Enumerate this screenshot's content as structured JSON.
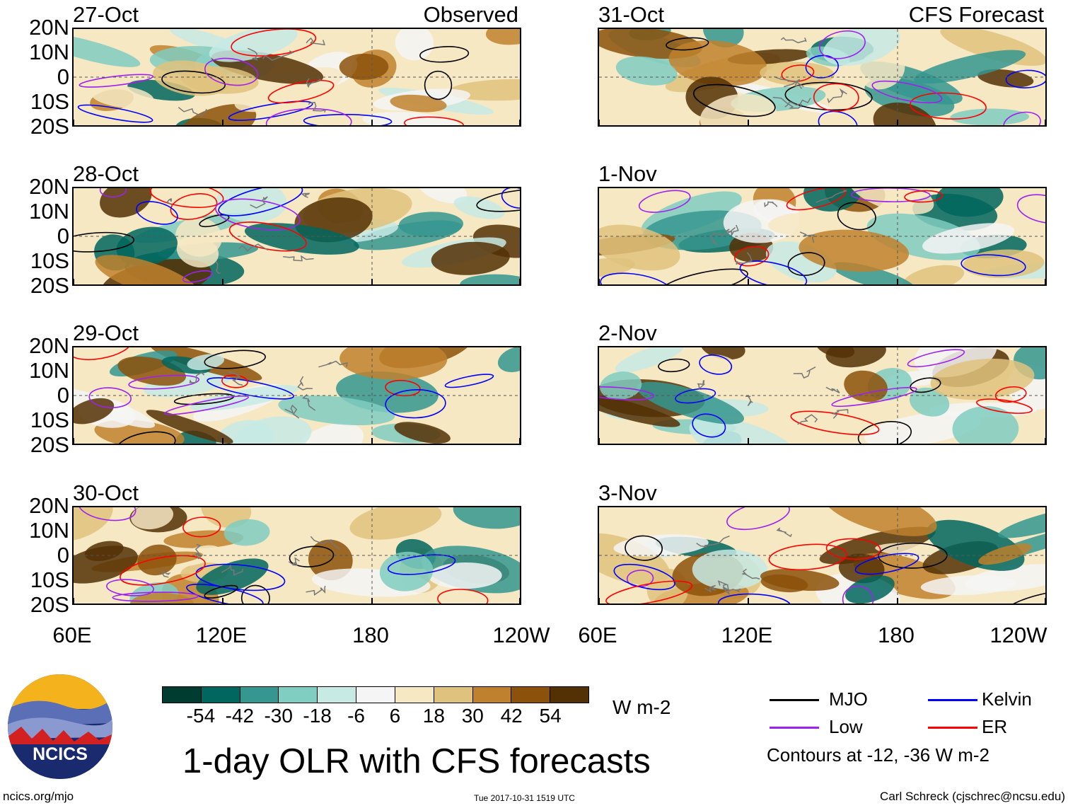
{
  "panels_left": [
    {
      "date": "27-Oct",
      "tag": "Observed"
    },
    {
      "date": "28-Oct",
      "tag": ""
    },
    {
      "date": "29-Oct",
      "tag": ""
    },
    {
      "date": "30-Oct",
      "tag": ""
    }
  ],
  "panels_right": [
    {
      "date": "31-Oct",
      "tag": "CFS Forecast"
    },
    {
      "date": "1-Nov",
      "tag": ""
    },
    {
      "date": "2-Nov",
      "tag": ""
    },
    {
      "date": "3-Nov",
      "tag": ""
    }
  ],
  "lat_labels": [
    "20N",
    "10N",
    "0",
    "10S",
    "20S"
  ],
  "lon_labels": [
    "60E",
    "120E",
    "180",
    "120W"
  ],
  "colorbar": {
    "ticks": [
      "-54",
      "-42",
      "-30",
      "-18",
      "-6",
      "6",
      "18",
      "30",
      "42",
      "54"
    ],
    "colors": [
      "#003c30",
      "#01665e",
      "#35978f",
      "#80cdc1",
      "#c7eae5",
      "#f5f5f5",
      "#f6e8c3",
      "#dfc27d",
      "#bf812d",
      "#8c510a",
      "#543005"
    ],
    "units": "W m-2"
  },
  "title": "1-day OLR with CFS forecasts",
  "legend": {
    "items": [
      {
        "label": "MJO",
        "color": "#000000"
      },
      {
        "label": "Kelvin",
        "color": "#0000ff"
      },
      {
        "label": "Low",
        "color": "#a020f0"
      },
      {
        "label": "ER",
        "color": "#ff0000"
      }
    ],
    "note": "Contours at -12, -36 W m-2"
  },
  "logo": {
    "text": "NCICS"
  },
  "footer": {
    "url": "ncics.org/mjo",
    "timestamp": "Tue 2017-10-31 1519 UTC",
    "author": "Carl Schreck (cjschrec@ncsu.edu)"
  }
}
